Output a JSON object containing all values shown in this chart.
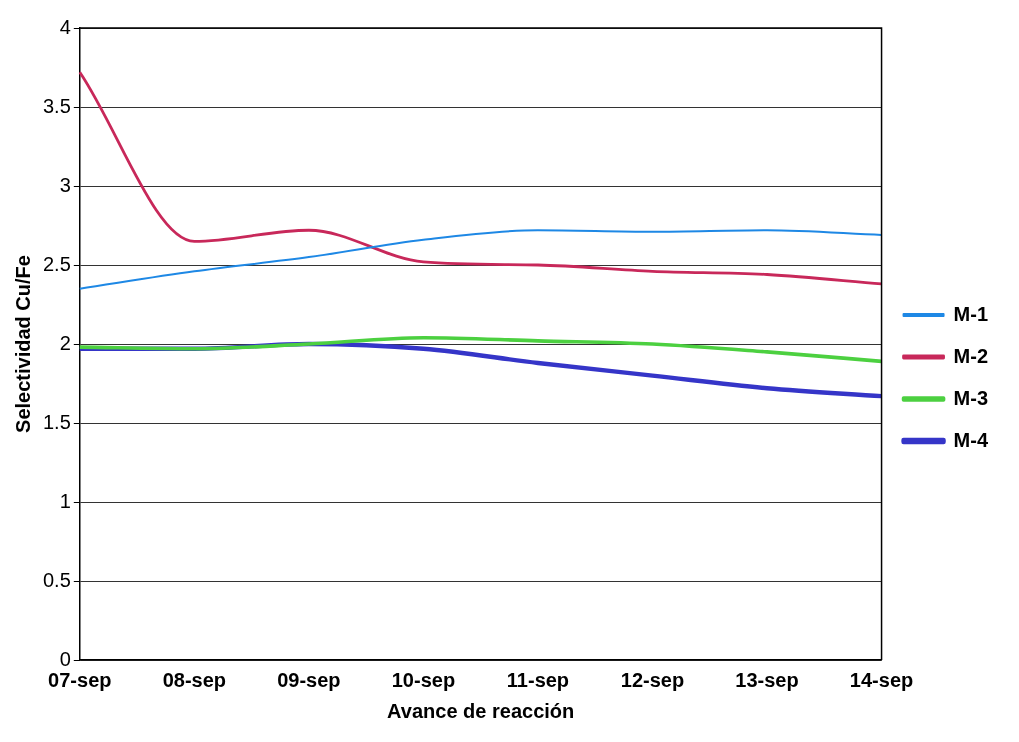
{
  "chart_data": {
    "type": "line",
    "xlabel": "Avance de reacción",
    "ylabel": "Selectividad Cu/Fe",
    "categories": [
      "07-sep",
      "08-sep",
      "09-sep",
      "10-sep",
      "11-sep",
      "12-sep",
      "13-sep",
      "14-sep"
    ],
    "series": [
      {
        "name": "M-1",
        "color": "#1e88e5",
        "values": [
          2.35,
          2.46,
          2.55,
          2.66,
          2.72,
          2.71,
          2.72,
          2.69
        ]
      },
      {
        "name": "M-2",
        "color": "#c8285a",
        "values": [
          3.72,
          2.65,
          2.72,
          2.52,
          2.5,
          2.46,
          2.44,
          2.38
        ]
      },
      {
        "name": "M-3",
        "color": "#4cd040",
        "values": [
          1.98,
          1.97,
          2.0,
          2.04,
          2.02,
          2.0,
          1.95,
          1.89
        ]
      },
      {
        "name": "M-4",
        "color": "#3535c8",
        "values": [
          1.97,
          1.97,
          2.0,
          1.97,
          1.88,
          1.8,
          1.72,
          1.67
        ]
      }
    ],
    "ylim": [
      0,
      4
    ],
    "yticks": [
      0,
      0.5,
      1,
      1.5,
      2,
      2.5,
      3,
      3.5,
      4
    ],
    "grid": "y",
    "legend": "right",
    "marker": "none",
    "line_style": "solid"
  }
}
